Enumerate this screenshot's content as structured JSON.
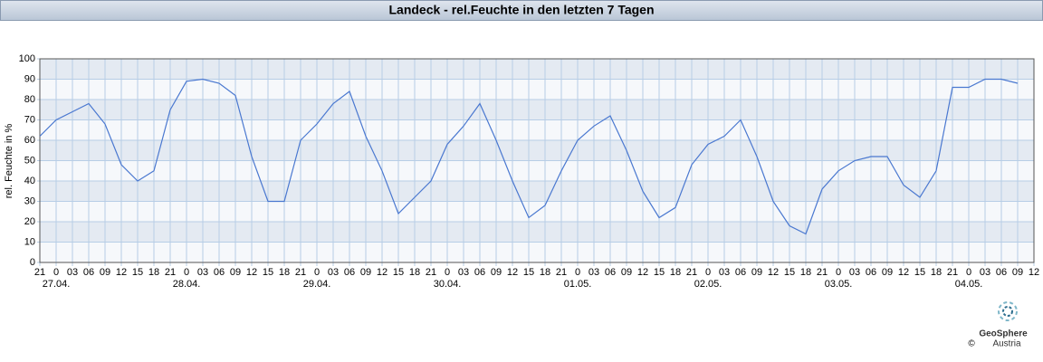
{
  "chart_data": {
    "type": "line",
    "title": "Landeck - rel.Feuchte in den letzten 7 Tagen",
    "y_label": "rel. Feuchte in %",
    "x": [
      0,
      3,
      6,
      9,
      12,
      15,
      18,
      21,
      24,
      27,
      30,
      33,
      36,
      39,
      42,
      45,
      48,
      51,
      54,
      57,
      60,
      63,
      66,
      69,
      72,
      75,
      78,
      81,
      84,
      87,
      90,
      93,
      96,
      99,
      102,
      105,
      108,
      111,
      114,
      117,
      120,
      123,
      126,
      129,
      132,
      135,
      138,
      141,
      144,
      147,
      150,
      153,
      156,
      159,
      162,
      165,
      168,
      171,
      174,
      177,
      180
    ],
    "series": [
      {
        "name": "rel. Feuchte",
        "color": "#4a78d0",
        "values": [
          62,
          70,
          74,
          78,
          68,
          48,
          40,
          45,
          75,
          89,
          90,
          88,
          82,
          52,
          30,
          30,
          60,
          68,
          78,
          84,
          62,
          45,
          24,
          32,
          40,
          58,
          67,
          78,
          60,
          40,
          22,
          28,
          45,
          60,
          67,
          72,
          55,
          35,
          22,
          27,
          48,
          58,
          62,
          70,
          52,
          30,
          18,
          14,
          36,
          45,
          50,
          52,
          52,
          38,
          32,
          45,
          86,
          86,
          90,
          90,
          88
        ]
      }
    ],
    "xlim": [
      0,
      183
    ],
    "xticks": [
      {
        "value": 0,
        "label": "21"
      },
      {
        "value": 3,
        "label": "0"
      },
      {
        "value": 6,
        "label": "03"
      },
      {
        "value": 9,
        "label": "06"
      },
      {
        "value": 12,
        "label": "09"
      },
      {
        "value": 15,
        "label": "12"
      },
      {
        "value": 18,
        "label": "15"
      },
      {
        "value": 21,
        "label": "18"
      },
      {
        "value": 24,
        "label": "21"
      },
      {
        "value": 27,
        "label": "0"
      },
      {
        "value": 30,
        "label": "03"
      },
      {
        "value": 33,
        "label": "06"
      },
      {
        "value": 36,
        "label": "09"
      },
      {
        "value": 39,
        "label": "12"
      },
      {
        "value": 42,
        "label": "15"
      },
      {
        "value": 45,
        "label": "18"
      },
      {
        "value": 48,
        "label": "21"
      },
      {
        "value": 51,
        "label": "0"
      },
      {
        "value": 54,
        "label": "03"
      },
      {
        "value": 57,
        "label": "06"
      },
      {
        "value": 60,
        "label": "09"
      },
      {
        "value": 63,
        "label": "12"
      },
      {
        "value": 66,
        "label": "15"
      },
      {
        "value": 69,
        "label": "18"
      },
      {
        "value": 72,
        "label": "21"
      },
      {
        "value": 75,
        "label": "0"
      },
      {
        "value": 78,
        "label": "03"
      },
      {
        "value": 81,
        "label": "06"
      },
      {
        "value": 84,
        "label": "09"
      },
      {
        "value": 87,
        "label": "12"
      },
      {
        "value": 90,
        "label": "15"
      },
      {
        "value": 93,
        "label": "18"
      },
      {
        "value": 96,
        "label": "21"
      },
      {
        "value": 99,
        "label": "0"
      },
      {
        "value": 102,
        "label": "03"
      },
      {
        "value": 105,
        "label": "06"
      },
      {
        "value": 108,
        "label": "09"
      },
      {
        "value": 111,
        "label": "12"
      },
      {
        "value": 114,
        "label": "15"
      },
      {
        "value": 117,
        "label": "18"
      },
      {
        "value": 120,
        "label": "21"
      },
      {
        "value": 123,
        "label": "0"
      },
      {
        "value": 126,
        "label": "03"
      },
      {
        "value": 129,
        "label": "06"
      },
      {
        "value": 132,
        "label": "09"
      },
      {
        "value": 135,
        "label": "12"
      },
      {
        "value": 138,
        "label": "15"
      },
      {
        "value": 141,
        "label": "18"
      },
      {
        "value": 144,
        "label": "21"
      },
      {
        "value": 147,
        "label": "0"
      },
      {
        "value": 150,
        "label": "03"
      },
      {
        "value": 153,
        "label": "06"
      },
      {
        "value": 156,
        "label": "09"
      },
      {
        "value": 159,
        "label": "12"
      },
      {
        "value": 162,
        "label": "15"
      },
      {
        "value": 165,
        "label": "18"
      },
      {
        "value": 168,
        "label": "21"
      },
      {
        "value": 171,
        "label": "0"
      },
      {
        "value": 174,
        "label": "03"
      },
      {
        "value": 177,
        "label": "06"
      },
      {
        "value": 180,
        "label": "09"
      },
      {
        "value": 183,
        "label": "12"
      }
    ],
    "date_labels": [
      {
        "value": 3,
        "label": "27.04."
      },
      {
        "value": 27,
        "label": "28.04."
      },
      {
        "value": 51,
        "label": "29.04."
      },
      {
        "value": 75,
        "label": "30.04."
      },
      {
        "value": 99,
        "label": "01.05."
      },
      {
        "value": 123,
        "label": "02.05."
      },
      {
        "value": 147,
        "label": "03.05."
      },
      {
        "value": 171,
        "label": "04.05."
      }
    ],
    "ylim": [
      0,
      100
    ],
    "yticks": [
      0,
      10,
      20,
      30,
      40,
      50,
      60,
      70,
      80,
      90,
      100
    ],
    "grid": true,
    "credit": [
      "GeoSphere",
      "Austria"
    ],
    "copyright": "©"
  }
}
